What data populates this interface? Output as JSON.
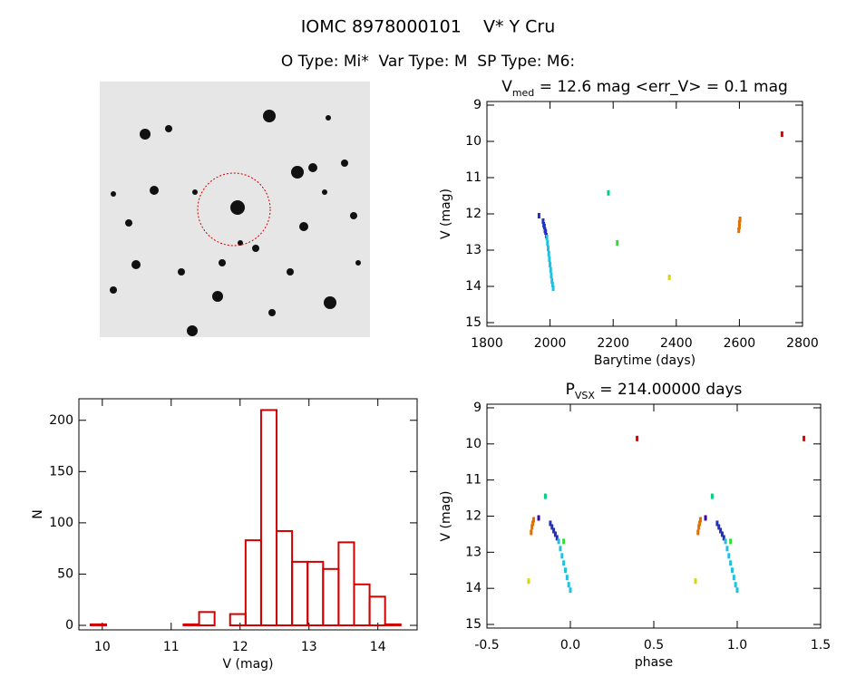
{
  "header": {
    "title": "IOMC 8978000101    V* Y Cru",
    "subtitle": "O Type: Mi*  Var Type: M  SP Type: M6:"
  },
  "chart_data": [
    {
      "type": "scatter",
      "title_main": "V",
      "title_sub": "med",
      "title_rest": " = 12.6 mag <err_V> = 0.1 mag",
      "x_label": "Barytime (days)",
      "y_label": "V (mag)",
      "xlim": [
        1800,
        2800
      ],
      "xticks": [
        1800,
        2000,
        2200,
        2400,
        2600,
        2800
      ],
      "ylim": [
        15.1,
        8.9
      ],
      "yticks": [
        9,
        10,
        11,
        12,
        13,
        14,
        15
      ],
      "series": [
        {
          "color": "#e00000",
          "x": [
            2735
          ],
          "y": [
            9.8
          ]
        },
        {
          "color": "#00d080",
          "x": [
            2185
          ],
          "y": [
            11.42
          ]
        },
        {
          "color": "#30e030",
          "x": [
            2213
          ],
          "y": [
            12.8
          ]
        },
        {
          "color": "#d8d800",
          "x": [
            2378
          ],
          "y": [
            13.75
          ]
        },
        {
          "color": "#e07000",
          "x": [
            2598,
            2600,
            2600,
            2602
          ],
          "y": [
            12.45,
            12.35,
            12.25,
            12.15
          ]
        },
        {
          "color": "#2030c0",
          "x": [
            1965,
            1978,
            1980,
            1982,
            1984,
            1986,
            1988
          ],
          "y": [
            12.05,
            12.2,
            12.3,
            12.35,
            12.45,
            12.5,
            12.6
          ]
        },
        {
          "color": "#20c0e0",
          "x": [
            1990,
            1992,
            1994,
            1996,
            1998,
            2000,
            2002,
            2004,
            2006,
            2008,
            2010
          ],
          "y": [
            12.65,
            12.8,
            12.95,
            13.1,
            13.25,
            13.4,
            13.55,
            13.7,
            13.85,
            13.95,
            14.05
          ]
        }
      ]
    },
    {
      "type": "histogram",
      "x_label": "V (mag)",
      "y_label": "N",
      "color": "#d00000",
      "xlim": [
        9.66,
        14.57
      ],
      "xticks": [
        10,
        11,
        12,
        13,
        14
      ],
      "ylim": [
        -4.4,
        221
      ],
      "yticks": [
        0,
        50,
        100,
        150,
        200
      ],
      "bins": [
        9.83,
        10.055,
        10.28,
        10.505,
        10.73,
        10.955,
        11.18,
        11.405,
        11.63,
        11.855,
        12.08,
        12.305,
        12.53,
        12.755,
        12.98,
        13.205,
        13.43,
        13.655,
        13.88,
        14.105,
        14.33
      ],
      "counts": [
        1,
        0,
        0,
        0,
        0,
        0,
        1,
        13,
        0,
        11,
        83,
        210,
        92,
        62,
        62,
        55,
        81,
        40,
        28,
        1
      ]
    },
    {
      "type": "scatter",
      "title_main": "P",
      "title_sub": "VSX",
      "title_rest": " = 214.00000 days",
      "x_label": "phase",
      "y_label": "V (mag)",
      "xlim": [
        -0.5,
        1.5
      ],
      "xticks": [
        -0.5,
        {
          "value": 0,
          "label": "0.0"
        },
        0.5,
        {
          "value": 1,
          "label": "1.0"
        },
        1.5
      ],
      "ylim": [
        15.1,
        8.9
      ],
      "yticks": [
        9,
        10,
        11,
        12,
        13,
        14,
        15
      ],
      "series": [
        {
          "color": "#e00000",
          "x": [
            0.4,
            1.4
          ],
          "y": [
            9.85,
            9.85
          ]
        },
        {
          "color": "#00d080",
          "x": [
            -0.15,
            0.85
          ],
          "y": [
            11.45,
            11.45
          ]
        },
        {
          "color": "#4000a0",
          "x": [
            -0.19,
            0.81
          ],
          "y": [
            12.05,
            12.05
          ]
        },
        {
          "color": "#e07000",
          "x": [
            -0.22,
            -0.225,
            -0.23,
            -0.235,
            0.78,
            0.775,
            0.77,
            0.765
          ],
          "y": [
            12.1,
            12.2,
            12.3,
            12.45,
            12.1,
            12.2,
            12.3,
            12.45
          ]
        },
        {
          "color": "#2030c0",
          "x": [
            -0.12,
            -0.11,
            -0.1,
            -0.09,
            -0.08,
            0.88,
            0.89,
            0.9,
            0.91,
            0.92
          ],
          "y": [
            12.2,
            12.3,
            12.4,
            12.5,
            12.6,
            12.2,
            12.3,
            12.4,
            12.5,
            12.6
          ]
        },
        {
          "color": "#30e030",
          "x": [
            -0.04,
            0.96
          ],
          "y": [
            12.7,
            12.7
          ]
        },
        {
          "color": "#20c0e0",
          "x": [
            -0.07,
            -0.06,
            -0.05,
            -0.04,
            -0.03,
            -0.02,
            -0.01,
            0,
            0.93,
            0.94,
            0.95,
            0.96,
            0.97,
            0.98,
            0.99,
            1
          ],
          "y": [
            12.7,
            12.9,
            13.1,
            13.3,
            13.5,
            13.7,
            13.9,
            14.05,
            12.7,
            12.9,
            13.1,
            13.3,
            13.5,
            13.7,
            13.9,
            14.05
          ]
        },
        {
          "color": "#d8d800",
          "x": [
            -0.25,
            0.75
          ],
          "y": [
            13.8,
            13.8
          ]
        }
      ]
    }
  ]
}
